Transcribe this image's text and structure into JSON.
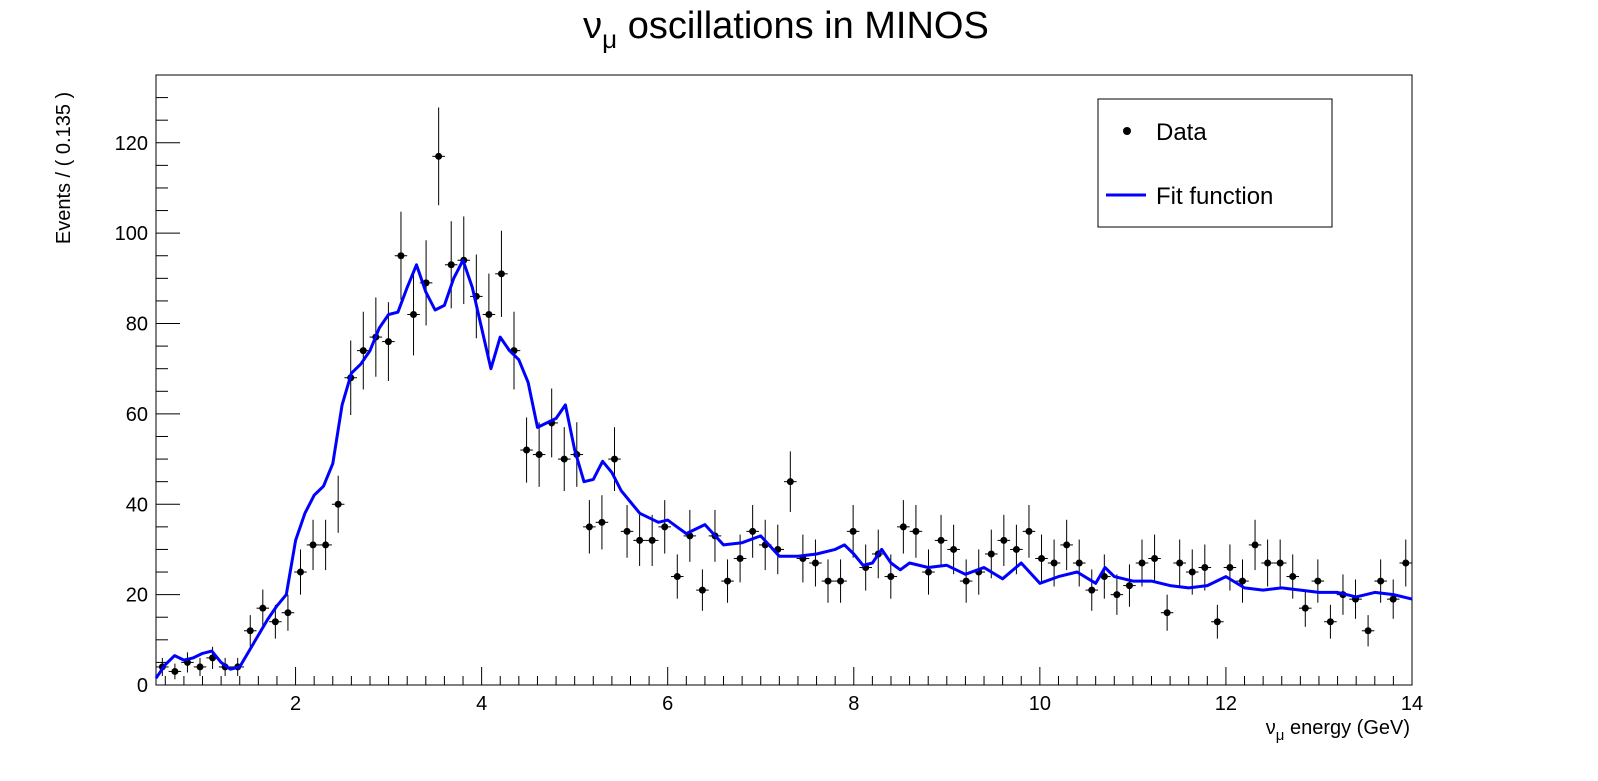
{
  "chart_data": {
    "type": "scatter",
    "title_main": "ν",
    "title_sub": "μ",
    "title_rest": " oscillations in MINOS",
    "xlabel_main": "ν",
    "xlabel_sub": "μ",
    "xlabel_rest": " energy (GeV)",
    "ylabel": "Events / ( 0.135 )",
    "xlim": [
      0.5,
      14
    ],
    "ylim": [
      0,
      135
    ],
    "x_ticks": [
      2,
      4,
      6,
      8,
      10,
      12,
      14
    ],
    "y_ticks": [
      0,
      20,
      40,
      60,
      80,
      100,
      120
    ],
    "bin_width": 0.135,
    "legend": {
      "position": "top-right",
      "entries": [
        "Data",
        "Fit function"
      ]
    },
    "colors": {
      "data": "#000000",
      "fit": "#0000ff"
    },
    "series": [
      {
        "name": "Data",
        "kind": "points_with_errors",
        "x": [
          0.568,
          0.703,
          0.838,
          0.973,
          1.108,
          1.243,
          1.378,
          1.513,
          1.648,
          1.783,
          1.918,
          2.053,
          2.188,
          2.323,
          2.458,
          2.593,
          2.728,
          2.863,
          2.998,
          3.133,
          3.268,
          3.403,
          3.538,
          3.673,
          3.808,
          3.943,
          4.078,
          4.213,
          4.348,
          4.483,
          4.618,
          4.753,
          4.888,
          5.023,
          5.158,
          5.293,
          5.428,
          5.563,
          5.698,
          5.833,
          5.968,
          6.103,
          6.238,
          6.373,
          6.508,
          6.643,
          6.778,
          6.913,
          7.048,
          7.183,
          7.318,
          7.453,
          7.588,
          7.723,
          7.858,
          7.993,
          8.128,
          8.263,
          8.398,
          8.533,
          8.668,
          8.803,
          8.938,
          9.073,
          9.208,
          9.343,
          9.478,
          9.613,
          9.748,
          9.883,
          10.018,
          10.153,
          10.288,
          10.423,
          10.558,
          10.693,
          10.828,
          10.963,
          11.098,
          11.233,
          11.368,
          11.503,
          11.638,
          11.773,
          11.908,
          12.043,
          12.178,
          12.313,
          12.448,
          12.583,
          12.718,
          12.853,
          12.988,
          13.123,
          13.258,
          13.393,
          13.528,
          13.663,
          13.798,
          13.933
        ],
        "y": [
          4,
          3,
          5,
          4,
          6,
          4,
          4,
          12,
          17,
          14,
          16,
          25,
          31,
          31,
          40,
          68,
          74,
          77,
          76,
          95,
          82,
          89,
          117,
          93,
          94,
          86,
          82,
          91,
          74,
          52,
          51,
          58,
          50,
          51,
          35,
          36,
          50,
          34,
          32,
          32,
          35,
          24,
          33,
          21,
          33,
          23,
          28,
          34,
          31,
          30,
          45,
          28,
          27,
          23,
          23,
          34,
          26,
          29,
          24,
          35,
          34,
          25,
          32,
          30,
          23,
          25,
          29,
          32,
          30,
          34,
          28,
          27,
          31,
          27,
          21,
          24,
          20,
          22,
          27,
          28,
          16,
          27,
          25,
          26,
          14,
          26,
          23,
          31,
          27,
          27,
          24,
          17,
          23,
          14,
          20,
          19,
          12,
          23,
          19,
          27
        ]
      },
      {
        "name": "Fit function",
        "kind": "curve",
        "x": [
          0.5,
          0.6,
          0.7,
          0.8,
          0.9,
          1.0,
          1.1,
          1.2,
          1.3,
          1.4,
          1.5,
          1.6,
          1.7,
          1.8,
          1.9,
          2.0,
          2.1,
          2.2,
          2.3,
          2.4,
          2.5,
          2.6,
          2.7,
          2.8,
          2.9,
          3.0,
          3.1,
          3.2,
          3.3,
          3.4,
          3.5,
          3.6,
          3.7,
          3.8,
          3.9,
          4.0,
          4.1,
          4.2,
          4.3,
          4.4,
          4.5,
          4.6,
          4.7,
          4.8,
          4.9,
          5.0,
          5.1,
          5.2,
          5.3,
          5.4,
          5.5,
          5.6,
          5.7,
          5.8,
          5.9,
          6.0,
          6.1,
          6.2,
          6.4,
          6.6,
          6.8,
          7.0,
          7.2,
          7.4,
          7.6,
          7.8,
          7.9,
          8.0,
          8.1,
          8.2,
          8.3,
          8.4,
          8.5,
          8.6,
          8.8,
          9.0,
          9.2,
          9.4,
          9.6,
          9.8,
          10.0,
          10.2,
          10.4,
          10.6,
          10.7,
          10.8,
          11.0,
          11.2,
          11.4,
          11.6,
          11.8,
          12.0,
          12.2,
          12.4,
          12.6,
          12.8,
          13.0,
          13.2,
          13.4,
          13.6,
          13.8,
          14.0
        ],
        "y": [
          1.5,
          4.5,
          6.5,
          5.5,
          6.0,
          7.0,
          7.5,
          5.0,
          3.5,
          4.0,
          7.5,
          11.0,
          14.5,
          17.5,
          20.0,
          32.0,
          38.0,
          42.0,
          44.0,
          49.0,
          62.0,
          69.0,
          71.0,
          74.0,
          79.0,
          82.0,
          82.5,
          88.0,
          93.0,
          87.0,
          83.0,
          84.0,
          90.0,
          94.0,
          88.0,
          79.0,
          70.0,
          77.0,
          74.0,
          72.0,
          67.0,
          57.0,
          58.0,
          59.0,
          62.0,
          52.0,
          45.0,
          45.5,
          49.5,
          47.0,
          43.0,
          40.5,
          38.0,
          37.0,
          36.0,
          36.5,
          35.0,
          33.5,
          35.5,
          31.0,
          31.5,
          33.0,
          28.5,
          28.5,
          29.0,
          30.0,
          31.0,
          29.0,
          26.5,
          27.0,
          30.0,
          27.0,
          25.5,
          27.0,
          26.0,
          26.5,
          24.5,
          26.0,
          23.5,
          27.0,
          22.5,
          24.0,
          25.0,
          22.5,
          26.0,
          24.0,
          23.0,
          23.0,
          22.0,
          21.5,
          22.0,
          24.0,
          21.5,
          21.0,
          21.5,
          21.0,
          20.5,
          20.5,
          19.5,
          20.5,
          20.0,
          19.0
        ]
      }
    ]
  }
}
